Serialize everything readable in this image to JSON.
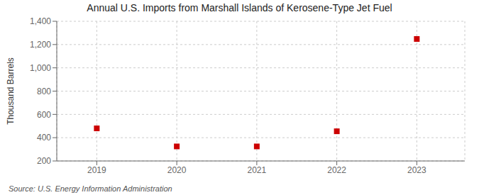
{
  "chart_data": {
    "type": "scatter",
    "title": "Annual U.S. Imports from Marshall Islands of Kerosene-Type Jet Fuel",
    "ylabel": "Thousand Barrels",
    "annotations": [
      "Source: U.S. Energy Information Administration"
    ],
    "x": [
      2019,
      2020,
      2021,
      2022,
      2023
    ],
    "values": [
      480,
      325,
      325,
      455,
      1248
    ],
    "xlim": [
      2018.5,
      2023.6
    ],
    "xticks": [
      2019,
      2020,
      2021,
      2022,
      2023
    ],
    "ylim": [
      200,
      1400
    ],
    "yticks": [
      200,
      400,
      600,
      800,
      {
        "value": 1000,
        "label": "1,000"
      },
      {
        "value": 1200,
        "label": "1,200"
      },
      {
        "value": 1400,
        "label": "1,400"
      }
    ],
    "color": "#cc0000",
    "marker": "square",
    "grid": true
  }
}
